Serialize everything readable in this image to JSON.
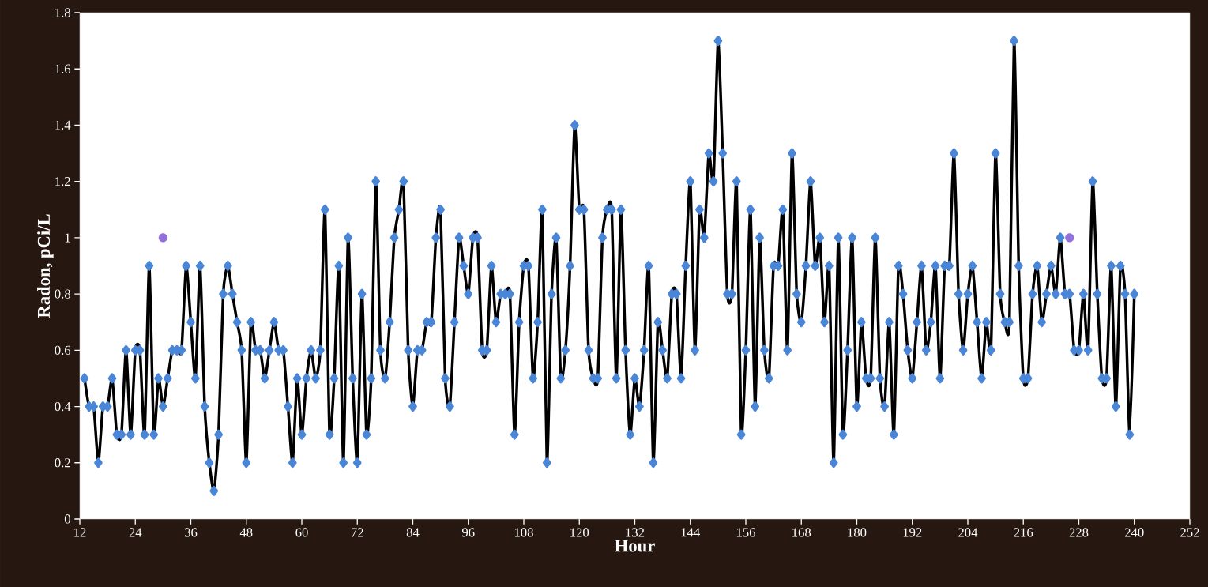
{
  "chart_data": {
    "type": "line",
    "xlabel": "Hour",
    "ylabel": "Radon, pCi/L",
    "xlim": [
      12,
      252
    ],
    "ylim": [
      0,
      1.8
    ],
    "xticks": [
      12,
      24,
      36,
      48,
      60,
      72,
      84,
      96,
      108,
      120,
      132,
      144,
      156,
      168,
      180,
      192,
      204,
      216,
      228,
      240,
      252
    ],
    "yticks": [
      0,
      0.2,
      0.4,
      0.6,
      0.8,
      1,
      1.2,
      1.4,
      1.6,
      1.8
    ],
    "line_style": "solid",
    "series": [
      {
        "color": "#4a86d8",
        "marker": "diamond",
        "x": [
          13,
          14,
          15,
          16,
          17,
          18,
          19,
          20,
          21,
          22,
          23,
          24,
          25,
          26,
          27,
          28,
          29,
          30,
          31,
          32,
          33,
          34,
          35,
          36,
          37,
          38,
          39,
          40,
          41,
          42,
          43,
          44,
          45,
          46,
          47,
          48,
          49,
          50,
          51,
          52,
          53,
          54,
          55,
          56,
          57,
          58,
          59,
          60,
          61,
          62,
          63,
          64,
          65,
          66,
          67,
          68,
          69,
          70,
          71,
          72,
          73,
          74,
          75,
          76,
          77,
          78,
          79,
          80,
          81,
          82,
          83,
          84,
          85,
          86,
          87,
          88,
          89,
          90,
          91,
          92,
          93,
          94,
          95,
          96,
          97,
          98,
          99,
          100,
          101,
          102,
          103,
          104,
          105,
          106,
          107,
          108,
          109,
          110,
          111,
          112,
          113,
          114,
          115,
          116,
          117,
          118,
          119,
          120,
          121,
          122,
          123,
          124,
          125,
          126,
          127,
          128,
          129,
          130,
          131,
          132,
          133,
          134,
          135,
          136,
          137,
          138,
          139,
          140,
          141,
          142,
          143,
          144,
          145,
          146,
          147,
          148,
          149,
          150,
          151,
          152,
          153,
          154,
          155,
          156,
          157,
          158,
          159,
          160,
          161,
          162,
          163,
          164,
          165,
          166,
          167,
          168,
          169,
          170,
          171,
          172,
          173,
          174,
          175,
          176,
          177,
          178,
          179,
          180,
          181,
          182,
          183,
          184,
          185,
          186,
          187,
          188,
          189,
          190,
          191,
          192,
          193,
          194,
          195,
          196,
          197,
          198,
          199,
          200,
          201,
          202,
          203,
          204,
          205,
          206,
          207,
          208,
          209,
          210,
          211,
          212,
          213,
          214,
          215,
          216,
          217,
          218,
          219,
          220,
          221,
          222,
          223,
          224,
          225,
          226,
          227,
          228,
          229,
          230,
          231,
          232,
          233,
          234,
          235,
          236,
          237,
          238,
          239,
          240
        ],
        "values": [
          0.5,
          0.4,
          0.4,
          0.2,
          0.4,
          0.4,
          0.5,
          0.3,
          0.3,
          0.6,
          0.3,
          0.6,
          0.6,
          0.3,
          0.9,
          0.3,
          0.5,
          0.4,
          0.5,
          0.6,
          0.6,
          0.6,
          0.9,
          0.7,
          0.5,
          0.9,
          0.4,
          0.2,
          0.1,
          0.3,
          0.8,
          0.9,
          0.8,
          0.7,
          0.6,
          0.2,
          0.7,
          0.6,
          0.6,
          0.5,
          0.6,
          0.7,
          0.6,
          0.6,
          0.4,
          0.2,
          0.5,
          0.3,
          0.5,
          0.6,
          0.5,
          0.6,
          1.1,
          0.3,
          0.5,
          0.9,
          0.2,
          1.0,
          0.5,
          0.2,
          0.8,
          0.3,
          0.5,
          1.2,
          0.6,
          0.5,
          0.7,
          1.0,
          1.1,
          1.2,
          0.6,
          0.4,
          0.6,
          0.6,
          0.7,
          0.7,
          1.0,
          1.1,
          0.5,
          0.4,
          0.7,
          1.0,
          0.9,
          0.8,
          1.0,
          1.0,
          0.6,
          0.6,
          0.9,
          0.7,
          0.8,
          0.8,
          0.8,
          0.3,
          0.7,
          0.9,
          0.9,
          0.5,
          0.7,
          1.1,
          0.2,
          0.8,
          1.0,
          0.5,
          0.6,
          0.9,
          1.4,
          1.1,
          1.1,
          0.6,
          0.5,
          0.5,
          1.0,
          1.1,
          1.1,
          0.5,
          1.1,
          0.6,
          0.3,
          0.5,
          0.4,
          0.6,
          0.9,
          0.2,
          0.7,
          0.6,
          0.5,
          0.8,
          0.8,
          0.5,
          0.9,
          1.2,
          0.6,
          1.1,
          1.0,
          1.3,
          1.2,
          1.7,
          1.3,
          0.8,
          0.8,
          1.2,
          0.3,
          0.6,
          1.1,
          0.4,
          1.0,
          0.6,
          0.5,
          0.9,
          0.9,
          1.1,
          0.6,
          1.3,
          0.8,
          0.7,
          0.9,
          1.2,
          0.9,
          1.0,
          0.7,
          0.9,
          0.2,
          1.0,
          0.3,
          0.6,
          1.0,
          0.4,
          0.7,
          0.5,
          0.5,
          1.0,
          0.5,
          0.4,
          0.7,
          0.3,
          0.9,
          0.8,
          0.6,
          0.5,
          0.7,
          0.9,
          0.6,
          0.7,
          0.9,
          0.5,
          0.9,
          0.9,
          1.3,
          0.8,
          0.6,
          0.8,
          0.9,
          0.7,
          0.5,
          0.7,
          0.6,
          1.3,
          0.8,
          0.7,
          0.7,
          1.7,
          0.9,
          0.5,
          0.5,
          0.8,
          0.9,
          0.7,
          0.8,
          0.9,
          0.8,
          1.0,
          0.8,
          0.8,
          0.6,
          0.6,
          0.8,
          0.6,
          1.2,
          0.8,
          0.5,
          0.5,
          0.9,
          0.4,
          0.9,
          0.8,
          0.3,
          0.8
        ]
      },
      {
        "type": "scatter",
        "color": "#9370db",
        "marker": "circle",
        "x": [
          30,
          226
        ],
        "values": [
          1.0,
          1.0
        ]
      }
    ]
  }
}
